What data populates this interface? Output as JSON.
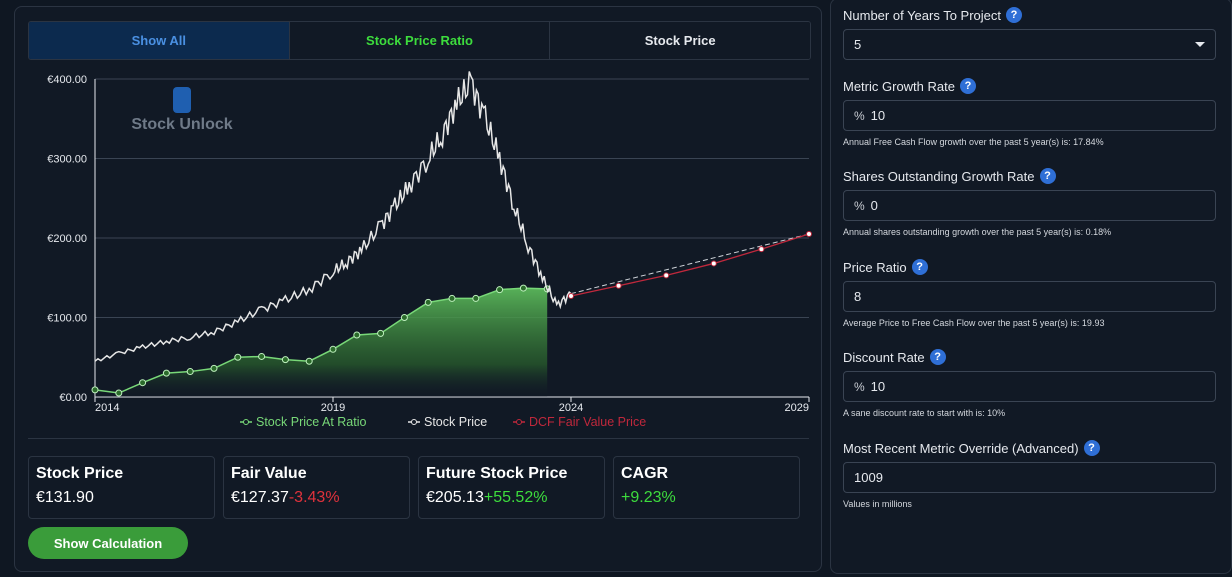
{
  "tabs": [
    {
      "label": "Show All"
    },
    {
      "label": "Stock Price Ratio"
    },
    {
      "label": "Stock Price"
    }
  ],
  "watermark": "Stock Unlock",
  "colors": {
    "accent_blue": "#4a90e2",
    "green": "#3ddc3d",
    "red": "#e0323c",
    "price_line": "#e6e6e6",
    "ratio_line": "#78d878",
    "dcf_line": "#c0283c"
  },
  "chart_data": {
    "type": "line",
    "y_ticks": [
      "€0.00",
      "€100.00",
      "€200.00",
      "€300.00",
      "€400.00"
    ],
    "ylim": [
      0,
      400
    ],
    "x_ticks": [
      "2014",
      "2019",
      "2024",
      "2029"
    ],
    "xlim": [
      2014,
      2029
    ],
    "series": [
      {
        "name": "Stock Price At Ratio",
        "x": [
          2014,
          2014.5,
          2015,
          2015.5,
          2016,
          2016.5,
          2017,
          2017.5,
          2018,
          2018.5,
          2019,
          2019.5,
          2020,
          2020.5,
          2021,
          2021.5,
          2022,
          2022.5,
          2023,
          2023.5
        ],
        "values": [
          9,
          5,
          18,
          30,
          32,
          36,
          50,
          51,
          47,
          45,
          60,
          78,
          80,
          100,
          119,
          124,
          124,
          135,
          137,
          136
        ]
      },
      {
        "name": "Stock Price",
        "x": [
          2014,
          2014.5,
          2015,
          2015.5,
          2016,
          2016.5,
          2017,
          2017.5,
          2018,
          2018.5,
          2019,
          2019.3,
          2019.6,
          2020,
          2020.3,
          2020.6,
          2021,
          2021.3,
          2021.6,
          2021.9,
          2022.2,
          2022.5,
          2022.8,
          2023.1,
          2023.4,
          2023.7,
          2024
        ],
        "values": [
          45,
          55,
          63,
          70,
          75,
          82,
          95,
          110,
          122,
          135,
          158,
          170,
          185,
          215,
          240,
          265,
          300,
          330,
          370,
          395,
          350,
          300,
          240,
          190,
          150,
          115,
          130
        ]
      },
      {
        "name": "DCF Fair Value Price",
        "x": [
          2024,
          2025,
          2026,
          2027,
          2028,
          2029
        ],
        "values": [
          127,
          140,
          153,
          168,
          186,
          205
        ]
      }
    ]
  },
  "legend": [
    {
      "label": "Stock Price At Ratio",
      "color": "#78d878"
    },
    {
      "label": "Stock Price",
      "color": "#e6e6e6"
    },
    {
      "label": "DCF Fair Value Price",
      "color": "#c0283c"
    }
  ],
  "cards": [
    {
      "title": "Stock Price",
      "value": "€131.90",
      "change": ""
    },
    {
      "title": "Fair Value",
      "value": "€127.37",
      "change": "-3.43%",
      "change_type": "neg"
    },
    {
      "title": "Future Stock Price",
      "value": "€205.13",
      "change": "+55.52%",
      "change_type": "pos"
    },
    {
      "title": "CAGR",
      "value": "",
      "change": "+9.23%",
      "change_type": "pos"
    }
  ],
  "show_calc_label": "Show Calculation",
  "form": {
    "years": {
      "label": "Number of Years To Project",
      "value": "5"
    },
    "metric_growth": {
      "label": "Metric Growth Rate",
      "prefix": "%",
      "value": "10",
      "help": "Annual Free Cash Flow growth over the past 5 year(s) is: 17.84%"
    },
    "shares_growth": {
      "label": "Shares Outstanding Growth Rate",
      "prefix": "%",
      "value": "0",
      "help": "Annual shares outstanding growth over the past 5 year(s) is: 0.18%"
    },
    "price_ratio": {
      "label": "Price Ratio",
      "value": "8",
      "help": "Average Price to Free Cash Flow over the past 5 year(s) is: 19.93"
    },
    "discount_rate": {
      "label": "Discount Rate",
      "prefix": "%",
      "value": "10",
      "help": "A sane discount rate to start with is: 10%"
    },
    "metric_override": {
      "label": "Most Recent Metric Override (Advanced)",
      "value": "1009",
      "help": "Values in millions"
    }
  }
}
